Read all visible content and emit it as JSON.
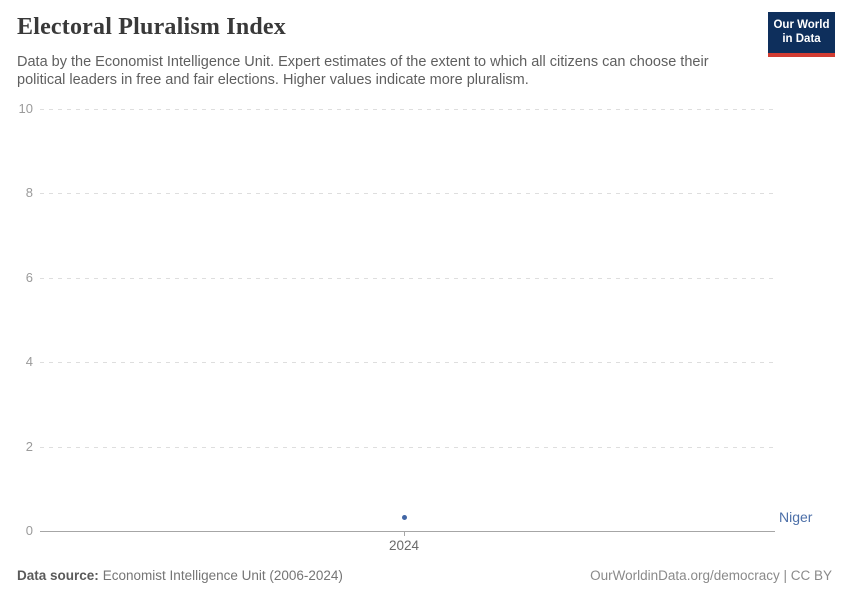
{
  "header": {
    "title": "Electoral Pluralism Index",
    "subtitle": "Data by the Economist Intelligence Unit. Expert estimates of the extent to which all citizens can choose their political leaders in free and fair elections. Higher values indicate more pluralism.",
    "logo": {
      "line1": "Our World",
      "line2": "in Data",
      "bg_color": "#0e2f5c",
      "accent_color": "#d23c32"
    }
  },
  "chart_data": {
    "type": "scatter",
    "title": "Electoral Pluralism Index",
    "x": [
      2024
    ],
    "xtick_labels": [
      "2024"
    ],
    "series": [
      {
        "name": "Niger",
        "values": [
          0.33
        ]
      }
    ],
    "xlabel": "",
    "ylabel": "",
    "ylim": [
      0,
      10
    ],
    "yticks": [
      0,
      2,
      4,
      6,
      8,
      10
    ],
    "grid": "horizontal-dashed",
    "legend_position": "right-of-point",
    "entity_label": "Niger",
    "entity_color": "#4166a5",
    "entity_label_color": "#4c6fa8"
  },
  "footer": {
    "source_label": "Data source:",
    "source_value": "Economist Intelligence Unit (2006-2024)",
    "right_text": "OurWorldinData.org/democracy | CC BY"
  }
}
